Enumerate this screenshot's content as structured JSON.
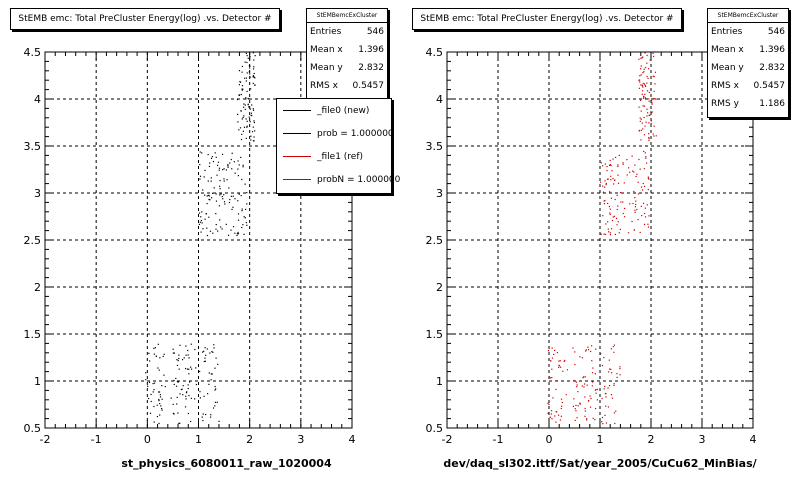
{
  "chart_data": [
    {
      "type": "scatter",
      "title": "StEMB emc: Total PreCluster Energy(log) .vs. Detector #",
      "xlabel": "st_physics_6080011_raw_1020004",
      "ylabel": "",
      "xlim": [
        -2,
        4
      ],
      "ylim": [
        0.5,
        4.5
      ],
      "xticks": [
        "-2",
        "-1",
        "0",
        "1",
        "2",
        "3",
        "4"
      ],
      "yticks": [
        "0.5",
        "1",
        "1.5",
        "2",
        "2.5",
        "3",
        "3.5",
        "4",
        "4.5"
      ],
      "grid": true,
      "point_color": "#000000",
      "clusters": [
        {
          "x": [
            -0.05,
            0.35
          ],
          "y": [
            0.55,
            1.4
          ],
          "n": 45
        },
        {
          "x": [
            0.45,
            0.95
          ],
          "y": [
            0.55,
            1.4
          ],
          "n": 60
        },
        {
          "x": [
            1.0,
            1.4
          ],
          "y": [
            0.55,
            1.4
          ],
          "n": 40
        },
        {
          "x": [
            1.0,
            1.5
          ],
          "y": [
            2.55,
            3.45
          ],
          "n": 75
        },
        {
          "x": [
            1.5,
            1.95
          ],
          "y": [
            2.55,
            3.45
          ],
          "n": 55
        },
        {
          "x": [
            1.75,
            2.1
          ],
          "y": [
            3.55,
            4.5
          ],
          "n": 95
        }
      ],
      "stats": {
        "name": "StEMBemcExCluster",
        "entries_label": "Entries",
        "entries": "546",
        "meanx_label": "Mean x",
        "meanx": "1.396",
        "meany_label": "Mean y",
        "meany": "2.832",
        "rmsx_label": "RMS x",
        "rmsx": "0.5457"
      },
      "legend": [
        {
          "label": "_file0 (new)",
          "color": "#000000"
        },
        {
          "label": "prob = 1.000000",
          "color": "#000000"
        },
        {
          "label": "_file1 (ref)",
          "color": "#cc0000"
        },
        {
          "label": "probN = 1.000000",
          "color": "#cc0000"
        }
      ]
    },
    {
      "type": "scatter",
      "title": "StEMB emc: Total PreCluster Energy(log) .vs. Detector #",
      "xlabel": "dev/daq_sl302.ittf/Sat/year_2005/CuCu62_MinBias/",
      "ylabel": "",
      "xlim": [
        -2,
        4
      ],
      "ylim": [
        0.5,
        4.5
      ],
      "xticks": [
        "-2",
        "-1",
        "0",
        "1",
        "2",
        "3",
        "4"
      ],
      "yticks": [
        "0.5",
        "1",
        "1.5",
        "2",
        "2.5",
        "3",
        "3.5",
        "4",
        "4.5"
      ],
      "grid": true,
      "point_color": "#cc0000",
      "clusters": [
        {
          "x": [
            -0.05,
            0.35
          ],
          "y": [
            0.55,
            1.4
          ],
          "n": 45
        },
        {
          "x": [
            0.45,
            0.95
          ],
          "y": [
            0.55,
            1.4
          ],
          "n": 60
        },
        {
          "x": [
            1.0,
            1.4
          ],
          "y": [
            0.55,
            1.4
          ],
          "n": 40
        },
        {
          "x": [
            1.0,
            1.5
          ],
          "y": [
            2.55,
            3.45
          ],
          "n": 75
        },
        {
          "x": [
            1.5,
            1.95
          ],
          "y": [
            2.55,
            3.45
          ],
          "n": 55
        },
        {
          "x": [
            1.75,
            2.1
          ],
          "y": [
            3.55,
            4.5
          ],
          "n": 95
        }
      ],
      "stats": {
        "name": "StEMBemcExCluster",
        "entries_label": "Entries",
        "entries": "546",
        "meanx_label": "Mean x",
        "meanx": "1.396",
        "meany_label": "Mean y",
        "meany": "2.832",
        "rmsx_label": "RMS x",
        "rmsx": "0.5457",
        "rmsy_label": "RMS y",
        "rmsy": "1.186"
      }
    }
  ]
}
